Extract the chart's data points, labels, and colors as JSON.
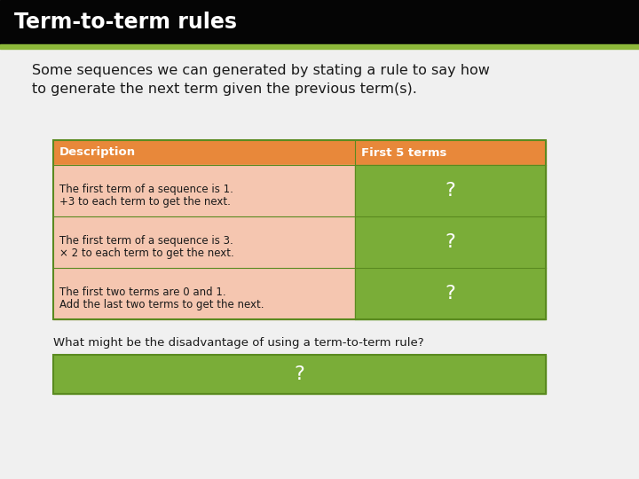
{
  "title": "Term-to-term rules",
  "title_bg": "#050505",
  "title_color": "#ffffff",
  "title_stripe_color": "#8db83a",
  "bg_color": "#f0f0f0",
  "intro_text_line1": "Some sequences we can generated by stating a rule to say how",
  "intro_text_line2": "to generate the next term given the previous term(s).",
  "intro_text_color": "#1a1a1a",
  "table_header": [
    "Description",
    "First 5 terms"
  ],
  "table_header_bg": "#e8883a",
  "table_header_color": "#ffffff",
  "table_rows": [
    [
      "The first term of a sequence is 1.\n+3 to each term to get the next.",
      "?"
    ],
    [
      "The first term of a sequence is 3.\n× 2 to each term to get the next.",
      "?"
    ],
    [
      "The first two terms are 0 and 1.\nAdd the last two terms to get the next.",
      "?"
    ]
  ],
  "row_left_bg": "#f5c6b0",
  "row_right_bg": "#7aad38",
  "row_text_color": "#1a1a1a",
  "row_right_text_color": "#ffffff",
  "table_border_color": "#5a8a20",
  "question_label": "What might be the disadvantage of using a term-to-term rule?",
  "question_label_color": "#1a1a1a",
  "question_box_bg": "#7aad38",
  "question_box_text": "?",
  "question_box_text_color": "#ffffff"
}
